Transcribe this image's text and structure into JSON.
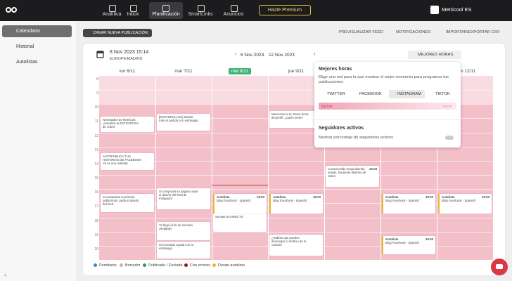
{
  "nav": {
    "items": [
      "Analítica",
      "Inbox",
      "Planificación",
      "SmartLinks",
      "Anuncios"
    ],
    "premium": "Hazte Premium",
    "account": "Metricool ES"
  },
  "sidebar": {
    "items": [
      "Calendario",
      "Historial",
      "Autolistas"
    ]
  },
  "toolbar": {
    "create": "CREAR NUEVA PUBLICACIÓN",
    "actions": [
      "PREVISUALIZAR FEED",
      "NOTIFICACIONES",
      "IMPORTAR/EXPORTAR CSV"
    ]
  },
  "calendar": {
    "datetime": "8 Nov 2023 15:14",
    "timezone": "EUROPE/MADRID",
    "range_start": "6 Nov 2023",
    "range_end": "12 Nov 2023",
    "best_hours_button": "MEJORES HORAS",
    "days": [
      "lun 6/11",
      "mar 7/11",
      "mié 8/11",
      "jue 9/11",
      "",
      "",
      "dom 12/11"
    ],
    "hours": [
      "8",
      "9",
      "10",
      "11",
      "12",
      "13",
      "14",
      "15",
      "16",
      "17",
      "18",
      "19",
      "20"
    ],
    "events": [
      {
        "text": "Novedades de Metricool, ¡actualiza tu ESTRATEGIA de redes!"
      },
      {
        "text": "AUTOPUBLICA TUS HISTORIAS DE FACEBOOK Ya es una realidad"
      },
      {
        "text": "Si compraste tu primera publicación cuida el diseño del feed"
      },
      {
        "text": "[MASTERCLASS] Sácale todo el partido a tu estrategia"
      },
      {
        "text": "Si compraste la página cuida el diseño del feed de Instagram"
      },
      {
        "text": "Ya llegó el fin de semana ¡Relájate!"
      },
      {
        "text": "Mencionar a tu marca fuera del perfil, ¿quién sería?"
      },
      {
        "time": "16:03",
        "text": "Cuenta estás respondiendo emails, haciendo diseños de redes"
      },
      {
        "time": "16:03",
        "title": "Autolista",
        "text": "Blog Facebook - Spanish"
      },
      {
        "time": "16:03",
        "title": "Autolista",
        "text": "Blog Facebook - Spanish"
      },
      {
        "time": "16:03",
        "title": "Autolista",
        "text": "Blog Facebook - Spanish"
      },
      {
        "time": "16:03",
        "title": "Autolista",
        "text": "Blog Facebook - Spanish"
      },
      {
        "text": "¿Sabías que puedes descargar el archivo de tu cuenta?"
      },
      {
        "time": "16:03",
        "title": "Autolista",
        "text": "Blog Facebook - Spanish"
      },
      {
        "text": "Sumate al DIRECTO"
      },
      {
        "text": "Si necesitas ayuda con tu estrategia"
      }
    ]
  },
  "popup": {
    "title": "Mejores horas",
    "description": "Elige una red para la que mostrar el mejor momento para programar tus publicaciones",
    "networks": [
      "TWITTER",
      "FACEBOOK",
      "INSTAGRAM",
      "TIKTOK"
    ],
    "best": "MEJOR",
    "worst": "PEOR",
    "followers_title": "Seguidores activos",
    "followers_toggle": "Mostrar porcentaje de seguidores activos"
  },
  "legend": {
    "items": [
      {
        "name": "Pendiente",
        "color": "#4a86c5"
      },
      {
        "name": "Borrador",
        "color": "#b8b8b8"
      },
      {
        "name": "Publicado / Enviado",
        "color": "#2f9b5c"
      },
      {
        "name": "Con errores",
        "color": "#8c1d1d"
      },
      {
        "name": "Desde autolista",
        "color": "#e8b830"
      }
    ]
  }
}
